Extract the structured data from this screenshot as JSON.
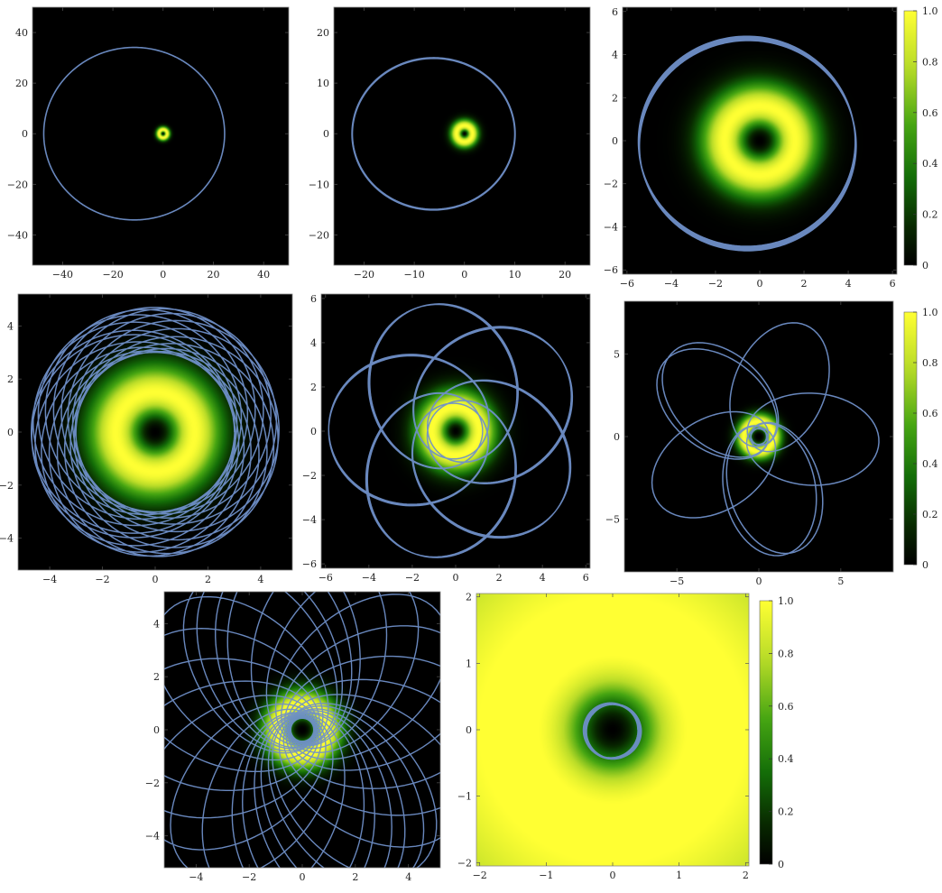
{
  "colors": {
    "density_scale": [
      "#000000",
      "#0a3a00",
      "#1e8a0a",
      "#8ec21a",
      "#ffff33"
    ],
    "orbit": "#6f8fc8",
    "frame": "#888888"
  },
  "chart_data": [
    {
      "type": "heatmap",
      "id": "p1",
      "density": "ring",
      "r0": 1.6,
      "sigma": 0.9,
      "floor": 0,
      "xlim": [
        -52,
        50
      ],
      "ylim": [
        -52,
        50
      ],
      "xticks": [
        -40,
        -20,
        0,
        20,
        40
      ],
      "yticks": [
        -40,
        -20,
        0,
        20,
        40
      ],
      "orbit": {
        "kind": "rosette",
        "a": 0.0,
        "b": 0.0,
        "k": 0,
        "turns": 1,
        "ecc": 0.32,
        "semi": 36,
        "precess": 0,
        "width": 1.6
      }
    },
    {
      "type": "heatmap",
      "id": "p2",
      "density": "ring",
      "r0": 1.6,
      "sigma": 0.9,
      "floor": 0,
      "xlim": [
        -26,
        25
      ],
      "ylim": [
        -26,
        25
      ],
      "xticks": [
        -20,
        -10,
        0,
        10,
        20
      ],
      "yticks": [
        -20,
        -10,
        0,
        10,
        20
      ],
      "orbit": {
        "kind": "rosette",
        "ecc": 0.38,
        "semi": 16.2,
        "precess": 0.0009,
        "turns": 14,
        "width": 2.0
      }
    },
    {
      "type": "heatmap",
      "id": "p3",
      "density": "ring",
      "r0": 1.6,
      "sigma": 1.15,
      "floor": 0,
      "xlim": [
        -6.2,
        6.2
      ],
      "ylim": [
        -6.2,
        6.2
      ],
      "xticks": [
        -6,
        -4,
        -2,
        0,
        2,
        4,
        6
      ],
      "yticks": [
        -6,
        -4,
        -2,
        0,
        2,
        4,
        6
      ],
      "orbit": {
        "kind": "rosette",
        "ecc": 0.12,
        "semi": 4.9,
        "precess": 0.09,
        "turns": 5,
        "width": 1.5
      },
      "colorbar": {
        "ticks": [
          0,
          0.2,
          0.4,
          0.6,
          0.8,
          1.0
        ],
        "labels": [
          "0",
          "0.2",
          "0.4",
          "0.6",
          "0.8",
          "1.0"
        ]
      }
    },
    {
      "type": "heatmap",
      "id": "p4",
      "density": "ring",
      "r0": 1.5,
      "sigma": 1.1,
      "floor": 0,
      "xlim": [
        -5.2,
        5.2
      ],
      "ylim": [
        -5.2,
        5.2
      ],
      "xticks": [
        -4,
        -2,
        0,
        2,
        4
      ],
      "yticks": [
        -4,
        -2,
        0,
        2,
        4
      ],
      "orbit": {
        "kind": "rosette",
        "ecc": 0.22,
        "semi": 3.85,
        "precess": 0.38,
        "turns": 17,
        "width": 1.5
      }
    },
    {
      "type": "heatmap",
      "id": "p5",
      "density": "ring",
      "r0": 1.1,
      "sigma": 1.0,
      "floor": 0,
      "xlim": [
        -6.2,
        6.2
      ],
      "ylim": [
        -6.2,
        6.2
      ],
      "xticks": [
        -6,
        -4,
        -2,
        0,
        2,
        4,
        6
      ],
      "yticks": [
        -6,
        -4,
        -2,
        0,
        2,
        4,
        6
      ],
      "orbit": {
        "kind": "rosette",
        "ecc": 0.65,
        "semi": 3.55,
        "precess": 2.51,
        "turns": 15,
        "width": 1.4
      }
    },
    {
      "type": "heatmap",
      "id": "p6",
      "density": "ring",
      "r0": 0.9,
      "sigma": 1.6,
      "floor": 0,
      "xlim": [
        -8.2,
        8.2
      ],
      "ylim": [
        -8.2,
        8.2
      ],
      "xticks": [
        -5,
        0,
        5
      ],
      "yticks": [
        -5,
        0,
        5
      ],
      "orbit": {
        "kind": "rosette",
        "ecc": 0.88,
        "semi": 3.9,
        "precess": 3.75,
        "turns": 7,
        "width": 1.5
      },
      "colorbar": {
        "ticks": [
          0,
          0.2,
          0.4,
          0.6,
          0.8,
          1.0
        ],
        "labels": [
          "0",
          "0.2",
          "0.4",
          "0.6",
          "0.8",
          "1.0"
        ]
      }
    },
    {
      "type": "heatmap",
      "id": "p7",
      "density": "ring",
      "r0": 0.95,
      "sigma": 1.3,
      "floor": 0,
      "xlim": [
        -5.2,
        5.2
      ],
      "ylim": [
        -5.2,
        5.2
      ],
      "xticks": [
        -4,
        -2,
        0,
        2,
        4
      ],
      "yticks": [
        -4,
        -2,
        0,
        2,
        4
      ],
      "orbit": {
        "kind": "rosette",
        "ecc": 0.88,
        "semi": 3.6,
        "precess": 3.3,
        "turns": 24,
        "width": 1.4
      }
    },
    {
      "type": "heatmap",
      "id": "p8",
      "density": "wide",
      "r0": 1.15,
      "sigma": 0.45,
      "floor": 0,
      "xlim": [
        -2.05,
        2.05
      ],
      "ylim": [
        -2.05,
        2.05
      ],
      "xticks": [
        -2,
        -1,
        0,
        1,
        2
      ],
      "yticks": [
        -2,
        -1,
        0,
        1,
        2
      ],
      "orbit": {
        "kind": "rosette",
        "ecc": 0.08,
        "semi": 0.41,
        "precess": 0.5,
        "turns": 5,
        "width": 1.4
      },
      "colorbar": {
        "ticks": [
          0,
          0.2,
          0.4,
          0.6,
          0.8,
          1.0
        ],
        "labels": [
          "0",
          "0.2",
          "0.4",
          "0.6",
          "0.8",
          "1.0"
        ]
      }
    }
  ]
}
